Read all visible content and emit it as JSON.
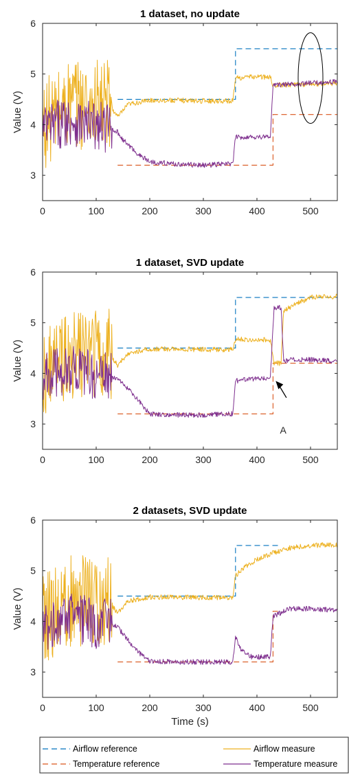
{
  "chart_data": [
    {
      "type": "line",
      "title": "1 dataset, no update",
      "ylabel": "Value (V)",
      "xlabel": "",
      "xlim": [
        0,
        550
      ],
      "ylim": [
        2.5,
        6
      ],
      "xticks": [
        0,
        100,
        200,
        300,
        400,
        500
      ],
      "yticks": [
        3,
        4,
        5,
        6
      ],
      "annotation": "ellipse around airflow and temperature measures near t=500",
      "series": [
        {
          "name": "Airflow reference",
          "color": "#0072BD",
          "style": "dashed",
          "x": [
            140,
            360,
            360,
            550
          ],
          "y": [
            4.5,
            4.5,
            5.5,
            5.5
          ]
        },
        {
          "name": "Temperature reference",
          "color": "#D95319",
          "style": "dashed",
          "x": [
            140,
            430,
            430,
            550
          ],
          "y": [
            3.2,
            3.2,
            4.2,
            4.2
          ]
        },
        {
          "name": "Airflow measure",
          "color": "#EDB120",
          "style": "solid",
          "x": [
            0,
            50,
            100,
            125,
            140,
            160,
            200,
            250,
            300,
            355,
            360,
            400,
            425,
            430,
            500,
            550
          ],
          "y": [
            4.0,
            4.4,
            4.4,
            4.4,
            4.15,
            4.4,
            4.48,
            4.48,
            4.47,
            4.47,
            4.92,
            4.95,
            4.93,
            4.78,
            4.8,
            4.82
          ]
        },
        {
          "name": "Temperature measure",
          "color": "#7E2F8E",
          "style": "solid",
          "x": [
            0,
            50,
            100,
            125,
            140,
            150,
            180,
            200,
            250,
            300,
            355,
            360,
            400,
            425,
            430,
            500,
            550
          ],
          "y": [
            3.9,
            4.1,
            3.95,
            3.95,
            3.85,
            3.7,
            3.4,
            3.27,
            3.22,
            3.2,
            3.23,
            3.75,
            3.76,
            3.76,
            4.78,
            4.82,
            4.85
          ]
        }
      ]
    },
    {
      "type": "line",
      "title": "1 dataset, SVD update",
      "ylabel": "Value (V)",
      "xlabel": "",
      "xlim": [
        0,
        550
      ],
      "ylim": [
        2.5,
        6
      ],
      "xticks": [
        0,
        100,
        200,
        300,
        400,
        500
      ],
      "yticks": [
        3,
        4,
        5,
        6
      ],
      "annotation": "A",
      "series": [
        {
          "name": "Airflow reference",
          "color": "#0072BD",
          "style": "dashed",
          "x": [
            140,
            360,
            360,
            550
          ],
          "y": [
            4.5,
            4.5,
            5.5,
            5.5
          ]
        },
        {
          "name": "Temperature reference",
          "color": "#D95319",
          "style": "dashed",
          "x": [
            140,
            430,
            430,
            550
          ],
          "y": [
            3.2,
            3.2,
            4.2,
            4.2
          ]
        },
        {
          "name": "Airflow measure",
          "color": "#EDB120",
          "style": "solid",
          "x": [
            0,
            50,
            100,
            125,
            140,
            160,
            200,
            250,
            300,
            355,
            360,
            400,
            425,
            432,
            445,
            450,
            470,
            500,
            550
          ],
          "y": [
            4.0,
            4.4,
            4.4,
            4.4,
            4.15,
            4.4,
            4.48,
            4.48,
            4.47,
            4.47,
            4.67,
            4.67,
            4.66,
            4.2,
            4.2,
            5.25,
            5.35,
            5.5,
            5.52
          ]
        },
        {
          "name": "Temperature measure",
          "color": "#7E2F8E",
          "style": "solid",
          "x": [
            0,
            50,
            100,
            125,
            140,
            150,
            180,
            200,
            250,
            300,
            355,
            360,
            400,
            425,
            432,
            445,
            450,
            470,
            500,
            550
          ],
          "y": [
            3.9,
            4.1,
            3.95,
            3.95,
            3.88,
            3.8,
            3.45,
            3.2,
            3.18,
            3.18,
            3.2,
            3.85,
            3.9,
            3.92,
            5.3,
            5.3,
            4.25,
            4.27,
            4.27,
            4.24
          ]
        }
      ]
    },
    {
      "type": "line",
      "title": "2 datasets, SVD update",
      "ylabel": "Value (V)",
      "xlabel": "Time (s)",
      "xlim": [
        0,
        550
      ],
      "ylim": [
        2.5,
        6
      ],
      "xticks": [
        0,
        100,
        200,
        300,
        400,
        500
      ],
      "yticks": [
        3,
        4,
        5,
        6
      ],
      "series": [
        {
          "name": "Airflow reference",
          "color": "#0072BD",
          "style": "dashed",
          "x": [
            140,
            360,
            360,
            440
          ],
          "y": [
            4.5,
            4.5,
            5.5,
            5.5
          ]
        },
        {
          "name": "Temperature reference",
          "color": "#D95319",
          "style": "dashed",
          "x": [
            140,
            430,
            430,
            440
          ],
          "y": [
            3.2,
            3.2,
            4.2,
            4.2
          ]
        },
        {
          "name": "Airflow measure",
          "color": "#EDB120",
          "style": "solid",
          "x": [
            0,
            50,
            100,
            125,
            140,
            160,
            200,
            250,
            300,
            355,
            360,
            380,
            400,
            430,
            460,
            500,
            550
          ],
          "y": [
            4.0,
            4.4,
            4.4,
            4.4,
            4.15,
            4.4,
            4.48,
            4.48,
            4.47,
            4.47,
            4.9,
            5.1,
            5.22,
            5.35,
            5.45,
            5.5,
            5.52
          ]
        },
        {
          "name": "Temperature measure",
          "color": "#7E2F8E",
          "style": "solid",
          "x": [
            0,
            50,
            100,
            125,
            140,
            150,
            180,
            200,
            250,
            300,
            355,
            360,
            370,
            390,
            425,
            430,
            460,
            500,
            550
          ],
          "y": [
            3.9,
            4.1,
            3.95,
            3.95,
            3.88,
            3.75,
            3.38,
            3.22,
            3.2,
            3.2,
            3.2,
            3.7,
            3.45,
            3.3,
            3.3,
            4.1,
            4.25,
            4.25,
            4.22
          ]
        }
      ]
    }
  ],
  "legend": [
    {
      "label": "Airflow reference",
      "color": "#0072BD",
      "style": "dashed"
    },
    {
      "label": "Airflow measure",
      "color": "#EDB120",
      "style": "solid"
    },
    {
      "label": "Temperature reference",
      "color": "#D95319",
      "style": "dashed"
    },
    {
      "label": "Temperature measure",
      "color": "#7E2F8E",
      "style": "solid"
    }
  ]
}
